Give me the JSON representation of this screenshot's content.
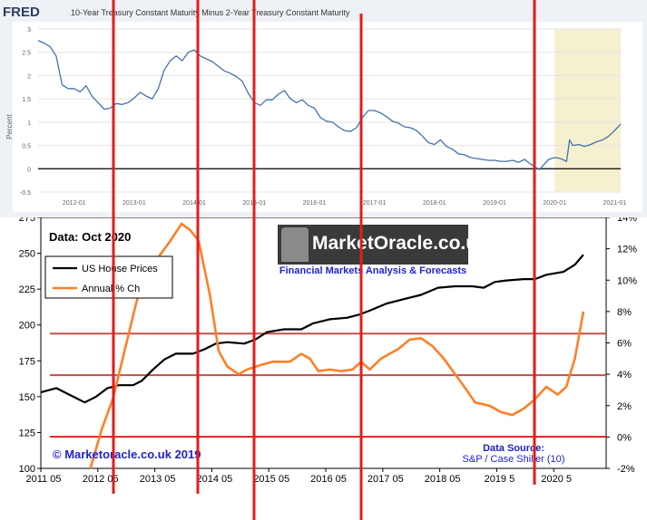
{
  "fred": {
    "logo": "FRED",
    "title": "10-Year Treasury Constant Maturity Minus 2-Year Treasury Constant Maturity",
    "y_axis_label": "Percent"
  },
  "house": {
    "data_label": "Data: Oct 2020",
    "copyright": "© Marketoracle.co.uk 2019",
    "source_line1": "Data Source:",
    "source_line2": "S&P / Case Shiller (10)",
    "logo_text": "MarketOracle.co.uk",
    "tagline": "Financial Markets Analysis & Forecasts"
  },
  "colors": {
    "fred_line": "#4572a7",
    "recession_shade": "#f5f0d0",
    "price_line": "#000000",
    "annual_line": "#ff7f27",
    "marker_red": "#e31d1d",
    "band_line": "#c0504d",
    "axis_text": "#666666",
    "copyright_blue": "#1f24c8"
  },
  "chart_data": [
    {
      "type": "line",
      "title": "10-Year Treasury Constant Maturity Minus 2-Year Treasury Constant Maturity",
      "xlabel": "",
      "ylabel": "Percent",
      "x_ticks": [
        "2012-01",
        "2013-01",
        "2014-01",
        "2015-01",
        "2016-01",
        "2017-01",
        "2018-01",
        "2019-01",
        "2020-01",
        "2021-01"
      ],
      "y_ticks": [
        -0.5,
        0.0,
        0.5,
        1.0,
        1.5,
        2.0,
        2.5,
        3.0
      ],
      "xlim": [
        2011.4,
        2021.1
      ],
      "ylim": [
        -0.5,
        3.0
      ],
      "shaded_period": [
        2020.0,
        2021.1
      ],
      "series": [
        {
          "points": [
            [
              2011.4,
              2.75
            ],
            [
              2011.5,
              2.7
            ],
            [
              2011.6,
              2.62
            ],
            [
              2011.7,
              2.42
            ],
            [
              2011.8,
              1.8
            ],
            [
              2011.9,
              1.72
            ],
            [
              2012.0,
              1.72
            ],
            [
              2012.1,
              1.65
            ],
            [
              2012.2,
              1.78
            ],
            [
              2012.3,
              1.55
            ],
            [
              2012.4,
              1.42
            ],
            [
              2012.5,
              1.28
            ],
            [
              2012.6,
              1.3
            ],
            [
              2012.7,
              1.4
            ],
            [
              2012.8,
              1.38
            ],
            [
              2012.9,
              1.42
            ],
            [
              2013.0,
              1.52
            ],
            [
              2013.1,
              1.64
            ],
            [
              2013.2,
              1.56
            ],
            [
              2013.3,
              1.5
            ],
            [
              2013.4,
              1.72
            ],
            [
              2013.5,
              2.12
            ],
            [
              2013.6,
              2.32
            ],
            [
              2013.7,
              2.42
            ],
            [
              2013.8,
              2.32
            ],
            [
              2013.9,
              2.5
            ],
            [
              2014.0,
              2.55
            ],
            [
              2014.1,
              2.42
            ],
            [
              2014.2,
              2.36
            ],
            [
              2014.3,
              2.3
            ],
            [
              2014.4,
              2.2
            ],
            [
              2014.5,
              2.1
            ],
            [
              2014.6,
              2.05
            ],
            [
              2014.7,
              1.98
            ],
            [
              2014.8,
              1.88
            ],
            [
              2014.9,
              1.62
            ],
            [
              2015.0,
              1.42
            ],
            [
              2015.1,
              1.36
            ],
            [
              2015.2,
              1.48
            ],
            [
              2015.3,
              1.48
            ],
            [
              2015.4,
              1.6
            ],
            [
              2015.5,
              1.68
            ],
            [
              2015.6,
              1.5
            ],
            [
              2015.7,
              1.42
            ],
            [
              2015.8,
              1.48
            ],
            [
              2015.9,
              1.36
            ],
            [
              2016.0,
              1.3
            ],
            [
              2016.1,
              1.1
            ],
            [
              2016.2,
              1.02
            ],
            [
              2016.3,
              1.0
            ],
            [
              2016.4,
              0.9
            ],
            [
              2016.5,
              0.82
            ],
            [
              2016.6,
              0.8
            ],
            [
              2016.7,
              0.88
            ],
            [
              2016.8,
              1.1
            ],
            [
              2016.9,
              1.25
            ],
            [
              2017.0,
              1.25
            ],
            [
              2017.1,
              1.2
            ],
            [
              2017.2,
              1.12
            ],
            [
              2017.3,
              1.02
            ],
            [
              2017.4,
              0.98
            ],
            [
              2017.5,
              0.9
            ],
            [
              2017.6,
              0.88
            ],
            [
              2017.7,
              0.82
            ],
            [
              2017.8,
              0.7
            ],
            [
              2017.9,
              0.56
            ],
            [
              2018.0,
              0.52
            ],
            [
              2018.1,
              0.62
            ],
            [
              2018.2,
              0.48
            ],
            [
              2018.3,
              0.42
            ],
            [
              2018.4,
              0.32
            ],
            [
              2018.5,
              0.3
            ],
            [
              2018.6,
              0.24
            ],
            [
              2018.7,
              0.22
            ],
            [
              2018.8,
              0.2
            ],
            [
              2018.9,
              0.18
            ],
            [
              2019.0,
              0.18
            ],
            [
              2019.1,
              0.16
            ],
            [
              2019.2,
              0.16
            ],
            [
              2019.3,
              0.18
            ],
            [
              2019.4,
              0.14
            ],
            [
              2019.5,
              0.2
            ],
            [
              2019.6,
              0.1
            ],
            [
              2019.7,
              0.02
            ],
            [
              2019.75,
              -0.02
            ],
            [
              2019.8,
              0.06
            ],
            [
              2019.9,
              0.2
            ],
            [
              2020.0,
              0.24
            ],
            [
              2020.1,
              0.22
            ],
            [
              2020.2,
              0.16
            ],
            [
              2020.25,
              0.62
            ],
            [
              2020.3,
              0.5
            ],
            [
              2020.4,
              0.52
            ],
            [
              2020.5,
              0.48
            ],
            [
              2020.6,
              0.52
            ],
            [
              2020.7,
              0.58
            ],
            [
              2020.8,
              0.62
            ],
            [
              2020.9,
              0.7
            ],
            [
              2021.0,
              0.82
            ],
            [
              2021.1,
              0.96
            ]
          ]
        }
      ]
    },
    {
      "type": "line",
      "xlabel": "",
      "ylabel": "",
      "x_ticks": [
        {
          "label": "2011 05",
          "x": 2011.33
        },
        {
          "label": "2012 05",
          "x": 2012.33
        },
        {
          "label": "2013 05",
          "x": 2013.33
        },
        {
          "label": "2014 05",
          "x": 2014.33
        },
        {
          "label": "2015 05",
          "x": 2015.33
        },
        {
          "label": "2016 05",
          "x": 2016.33
        },
        {
          "label": "2017 05",
          "x": 2017.33
        },
        {
          "label": "2018 05",
          "x": 2018.33
        },
        {
          "label": "2019 5",
          "x": 2019.33
        },
        {
          "label": "2020 5",
          "x": 2020.33
        }
      ],
      "xlim": [
        2011.33,
        2021.25
      ],
      "y_left_ticks": [
        100.0,
        125.0,
        150.0,
        175.0,
        200.0,
        225.0,
        250.0,
        275.0
      ],
      "ylim_left": [
        100,
        275
      ],
      "y_right_ticks": [
        "-2%",
        "0%",
        "2%",
        "4%",
        "6%",
        "8%",
        "10%",
        "12%",
        "14%"
      ],
      "ylim_right": [
        -2,
        14
      ],
      "legend": {
        "position": "top-left",
        "entries": [
          "US House Prices",
          "Annual % Ch"
        ]
      },
      "horizontal_lines_left_axis": [
        194,
        165,
        122
      ],
      "series": [
        {
          "name": "US House Prices",
          "axis": "left",
          "points": [
            [
              2011.33,
              153
            ],
            [
              2011.6,
              156
            ],
            [
              2011.9,
              150
            ],
            [
              2012.1,
              146
            ],
            [
              2012.3,
              150
            ],
            [
              2012.5,
              156
            ],
            [
              2012.7,
              158
            ],
            [
              2012.95,
              158
            ],
            [
              2013.1,
              161
            ],
            [
              2013.3,
              169
            ],
            [
              2013.5,
              176
            ],
            [
              2013.7,
              180
            ],
            [
              2014.0,
              180
            ],
            [
              2014.2,
              183
            ],
            [
              2014.4,
              187
            ],
            [
              2014.6,
              188
            ],
            [
              2014.9,
              187
            ],
            [
              2015.1,
              190
            ],
            [
              2015.3,
              195
            ],
            [
              2015.6,
              197
            ],
            [
              2015.9,
              197
            ],
            [
              2016.1,
              201
            ],
            [
              2016.4,
              204
            ],
            [
              2016.7,
              205
            ],
            [
              2016.9,
              207
            ],
            [
              2017.1,
              210
            ],
            [
              2017.4,
              215
            ],
            [
              2017.7,
              218
            ],
            [
              2018.0,
              221
            ],
            [
              2018.3,
              226
            ],
            [
              2018.6,
              227
            ],
            [
              2018.9,
              227
            ],
            [
              2019.1,
              226
            ],
            [
              2019.3,
              230
            ],
            [
              2019.5,
              231
            ],
            [
              2019.8,
              232
            ],
            [
              2020.0,
              232
            ],
            [
              2020.2,
              235
            ],
            [
              2020.5,
              237
            ],
            [
              2020.7,
              242
            ],
            [
              2020.85,
              249
            ]
          ]
        },
        {
          "name": "Annual % Ch",
          "axis": "right",
          "points": [
            [
              2012.2,
              -2.0
            ],
            [
              2012.4,
              0.5
            ],
            [
              2012.6,
              2.5
            ],
            [
              2012.8,
              5.5
            ],
            [
              2013.0,
              8.5
            ],
            [
              2013.2,
              11.0
            ],
            [
              2013.4,
              11.5
            ],
            [
              2013.6,
              12.5
            ],
            [
              2013.8,
              13.6
            ],
            [
              2013.95,
              13.2
            ],
            [
              2014.1,
              12.5
            ],
            [
              2014.3,
              9.0
            ],
            [
              2014.45,
              5.5
            ],
            [
              2014.6,
              4.5
            ],
            [
              2014.8,
              4.0
            ],
            [
              2014.95,
              4.3
            ],
            [
              2015.2,
              4.6
            ],
            [
              2015.4,
              4.8
            ],
            [
              2015.7,
              4.8
            ],
            [
              2015.9,
              5.3
            ],
            [
              2016.05,
              5.0
            ],
            [
              2016.2,
              4.2
            ],
            [
              2016.4,
              4.3
            ],
            [
              2016.6,
              4.2
            ],
            [
              2016.8,
              4.3
            ],
            [
              2016.95,
              4.8
            ],
            [
              2017.1,
              4.3
            ],
            [
              2017.3,
              5.0
            ],
            [
              2017.6,
              5.6
            ],
            [
              2017.8,
              6.2
            ],
            [
              2018.0,
              6.3
            ],
            [
              2018.2,
              5.8
            ],
            [
              2018.4,
              5.0
            ],
            [
              2018.6,
              4.0
            ],
            [
              2018.8,
              3.0
            ],
            [
              2018.95,
              2.2
            ],
            [
              2019.2,
              2.0
            ],
            [
              2019.4,
              1.6
            ],
            [
              2019.6,
              1.4
            ],
            [
              2019.8,
              1.8
            ],
            [
              2020.0,
              2.4
            ],
            [
              2020.2,
              3.2
            ],
            [
              2020.4,
              2.7
            ],
            [
              2020.55,
              3.2
            ],
            [
              2020.7,
              5.0
            ],
            [
              2020.85,
              8.0
            ]
          ]
        }
      ]
    }
  ]
}
